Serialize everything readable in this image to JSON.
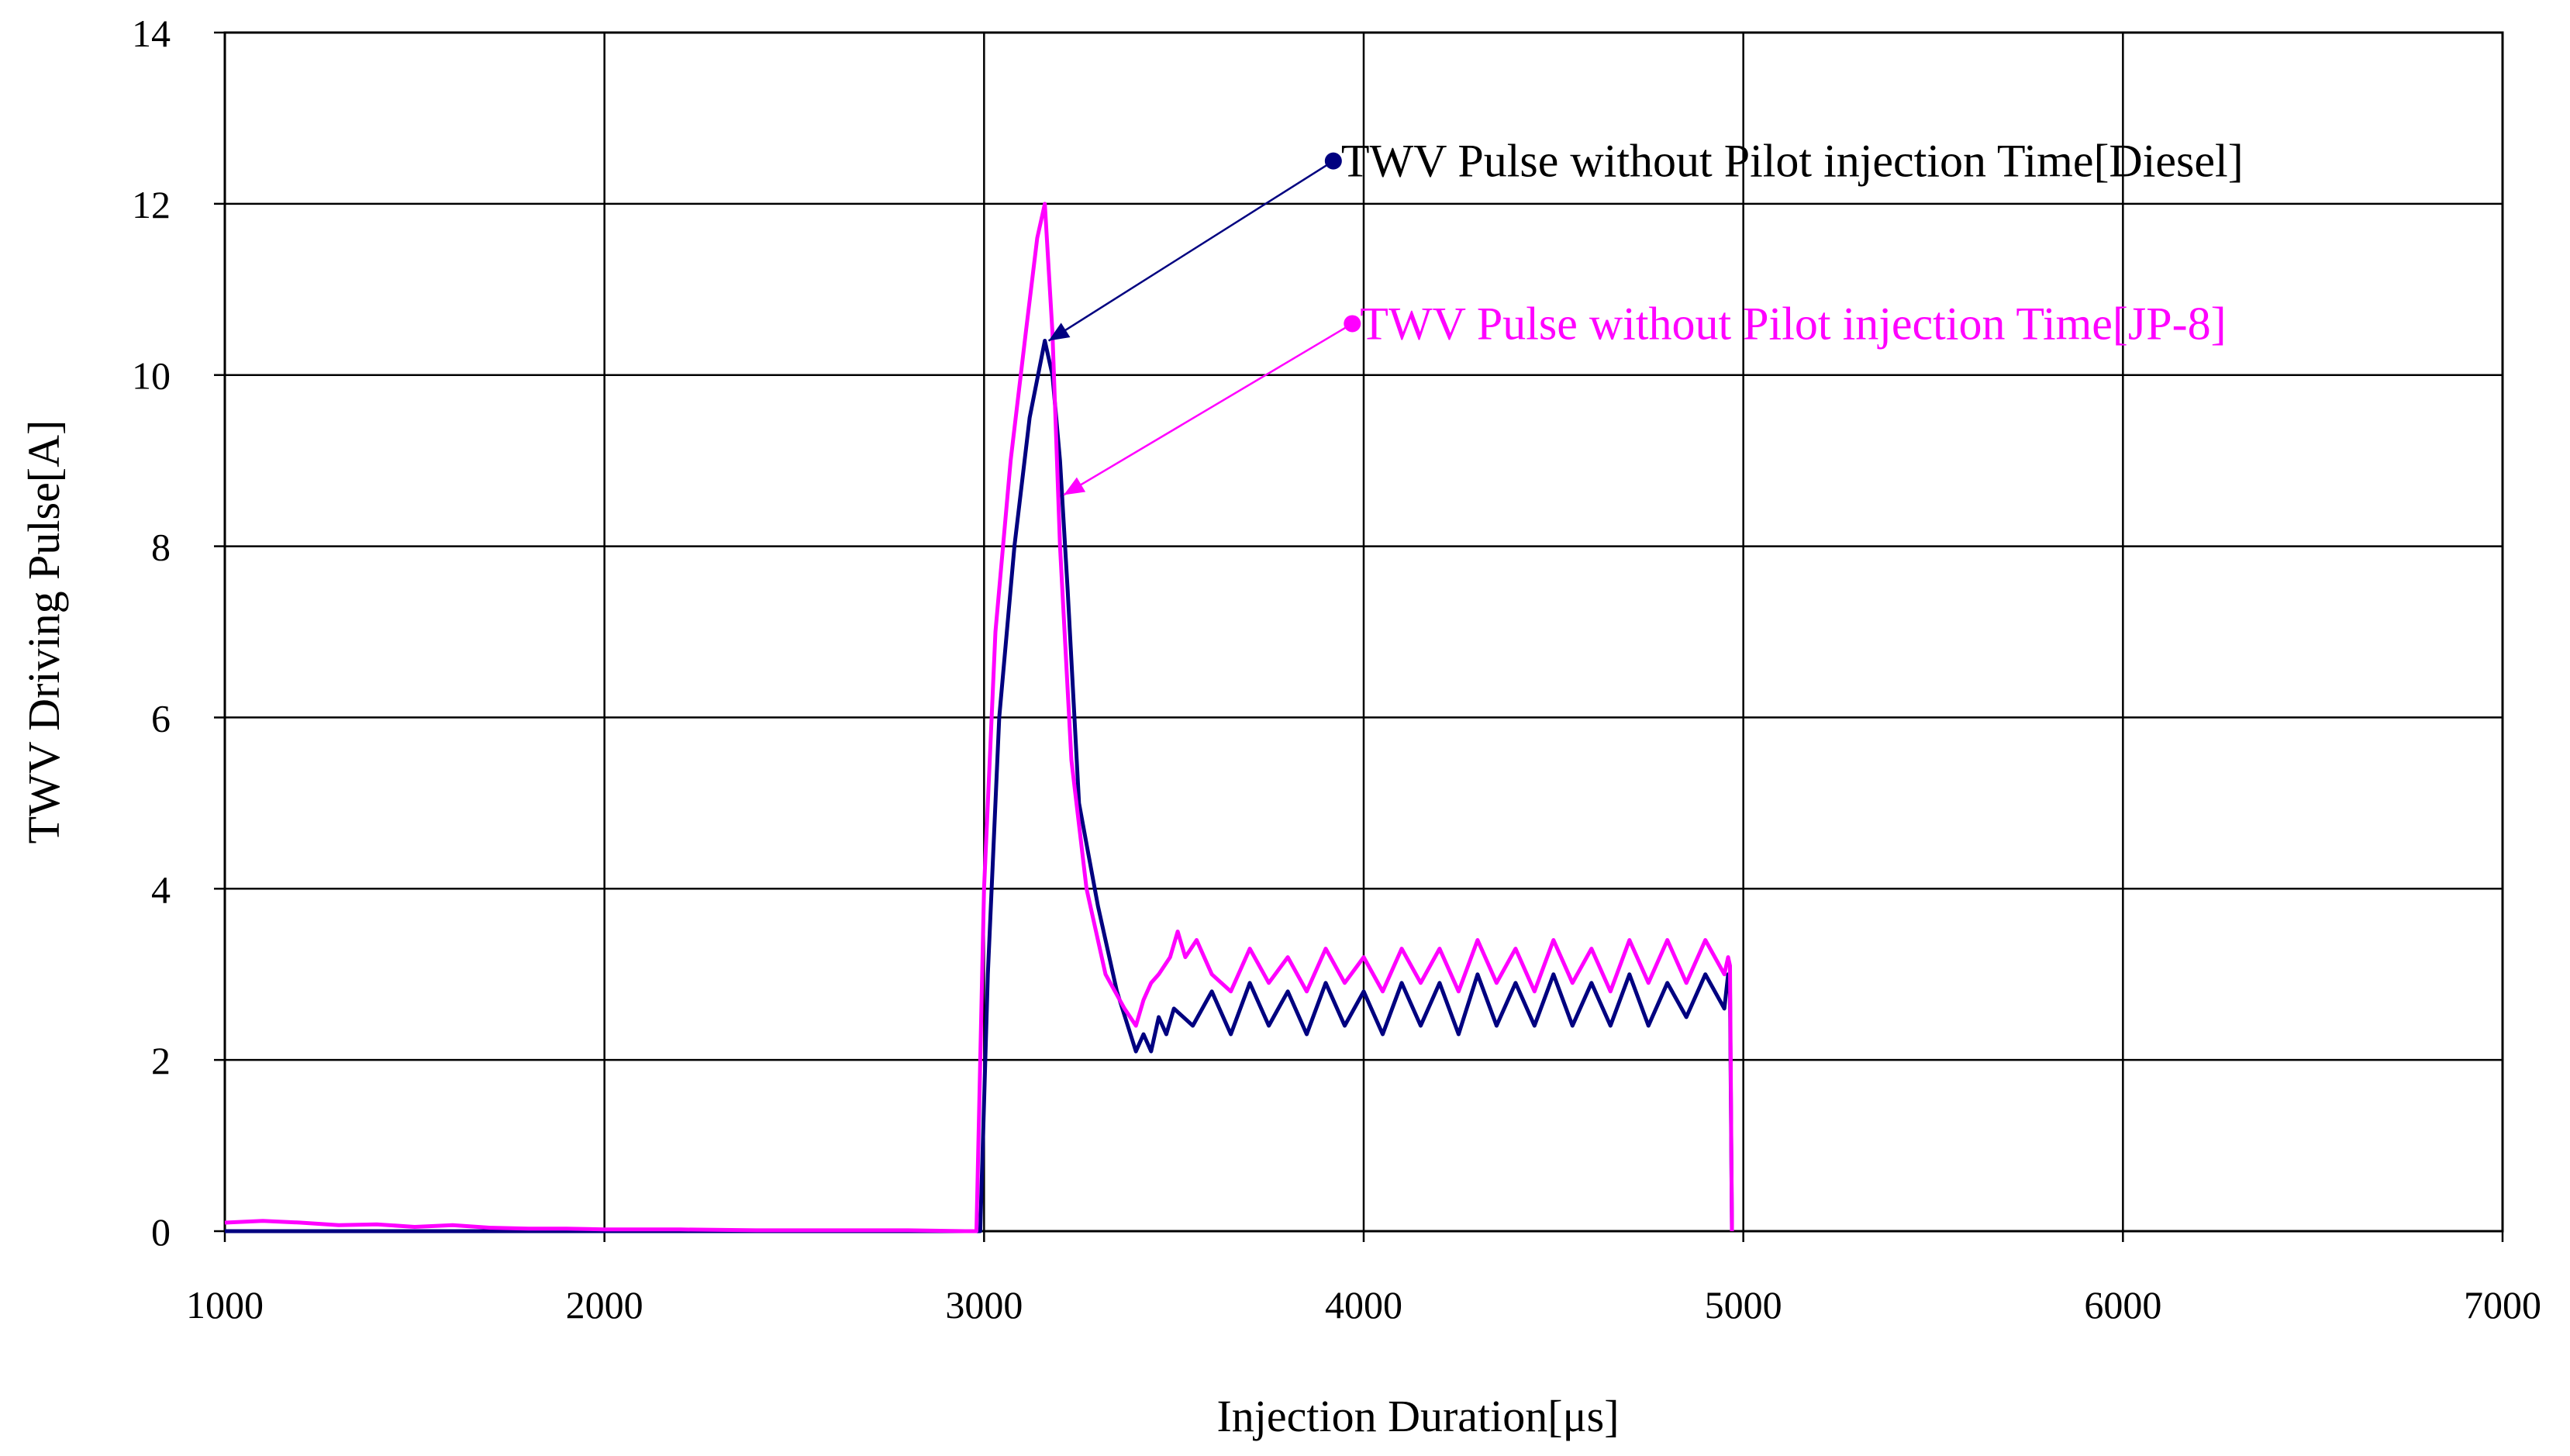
{
  "chart_data": {
    "type": "line",
    "title": "",
    "xlabel": "Injection Duration[μs]",
    "ylabel": "TWV Driving Pulse[A]",
    "xlim": [
      1000,
      7000
    ],
    "ylim": [
      0,
      14
    ],
    "x_ticks": [
      1000,
      2000,
      3000,
      4000,
      5000,
      6000,
      7000
    ],
    "y_ticks": [
      0,
      2,
      4,
      6,
      8,
      10,
      12,
      14
    ],
    "x_tick_labels": [
      "1000",
      "2000",
      "3000",
      "4000",
      "5000",
      "6000",
      "7000"
    ],
    "y_tick_labels": [
      "0",
      "2",
      "4",
      "6",
      "8",
      "10",
      "12",
      "14"
    ],
    "grid": true,
    "series": [
      {
        "name": "TWV Pulse without Pilot injection Time[Diesel]",
        "color": "#000080",
        "x": [
          1000,
          2950,
          2990,
          3010,
          3040,
          3080,
          3120,
          3160,
          3180,
          3200,
          3220,
          3250,
          3300,
          3350,
          3400,
          3420,
          3440,
          3460,
          3480,
          3500,
          3550,
          3600,
          3650,
          3700,
          3750,
          3800,
          3850,
          3900,
          3950,
          4000,
          4050,
          4100,
          4150,
          4200,
          4250,
          4300,
          4350,
          4400,
          4450,
          4500,
          4550,
          4600,
          4650,
          4700,
          4750,
          4800,
          4850,
          4900,
          4950,
          4960,
          4965,
          4970
        ],
        "y": [
          0.0,
          0.0,
          0.0,
          3.0,
          6.0,
          8.0,
          9.5,
          10.4,
          10.0,
          9.0,
          7.5,
          5.0,
          3.8,
          2.8,
          2.1,
          2.3,
          2.1,
          2.5,
          2.3,
          2.6,
          2.4,
          2.8,
          2.3,
          2.9,
          2.4,
          2.8,
          2.3,
          2.9,
          2.4,
          2.8,
          2.3,
          2.9,
          2.4,
          2.9,
          2.3,
          3.0,
          2.4,
          2.9,
          2.4,
          3.0,
          2.4,
          2.9,
          2.4,
          3.0,
          2.4,
          2.9,
          2.5,
          3.0,
          2.6,
          3.0,
          2.8,
          0.0
        ]
      },
      {
        "name": "TWV Pulse without Pilot injection Time[JP-8]",
        "color": "#ff00ff",
        "x": [
          1000,
          1100,
          1200,
          1300,
          1400,
          1500,
          1600,
          1700,
          1800,
          1900,
          2000,
          2200,
          2400,
          2600,
          2800,
          2950,
          2980,
          3000,
          3030,
          3070,
          3110,
          3140,
          3160,
          3180,
          3200,
          3230,
          3270,
          3320,
          3370,
          3400,
          3420,
          3440,
          3460,
          3490,
          3510,
          3530,
          3560,
          3600,
          3650,
          3700,
          3750,
          3800,
          3850,
          3900,
          3950,
          4000,
          4050,
          4100,
          4150,
          4200,
          4250,
          4300,
          4350,
          4400,
          4450,
          4500,
          4550,
          4600,
          4650,
          4700,
          4750,
          4800,
          4850,
          4900,
          4950,
          4960,
          4965,
          4970
        ],
        "y": [
          0.1,
          0.12,
          0.1,
          0.07,
          0.08,
          0.05,
          0.07,
          0.04,
          0.03,
          0.03,
          0.02,
          0.02,
          0.01,
          0.01,
          0.01,
          0.0,
          0.0,
          4.0,
          7.0,
          9.0,
          10.5,
          11.6,
          12.0,
          10.5,
          8.0,
          5.5,
          4.0,
          3.0,
          2.6,
          2.4,
          2.7,
          2.9,
          3.0,
          3.2,
          3.5,
          3.2,
          3.4,
          3.0,
          2.8,
          3.3,
          2.9,
          3.2,
          2.8,
          3.3,
          2.9,
          3.2,
          2.8,
          3.3,
          2.9,
          3.3,
          2.8,
          3.4,
          2.9,
          3.3,
          2.8,
          3.4,
          2.9,
          3.3,
          2.8,
          3.4,
          2.9,
          3.4,
          2.9,
          3.4,
          3.0,
          3.2,
          3.1,
          0.0
        ]
      }
    ],
    "annotations": [
      {
        "text": "TWV Pulse without Pilot injection Time[Diesel]",
        "color": "#000080",
        "anchor": [
          3920,
          12.5
        ],
        "target": [
          3170,
          10.4
        ]
      },
      {
        "text": "TWV Pulse without Pilot injection Time[JP-8]",
        "color": "#ff00ff",
        "anchor": [
          3970,
          10.6
        ],
        "target": [
          3210,
          8.6
        ]
      }
    ]
  }
}
